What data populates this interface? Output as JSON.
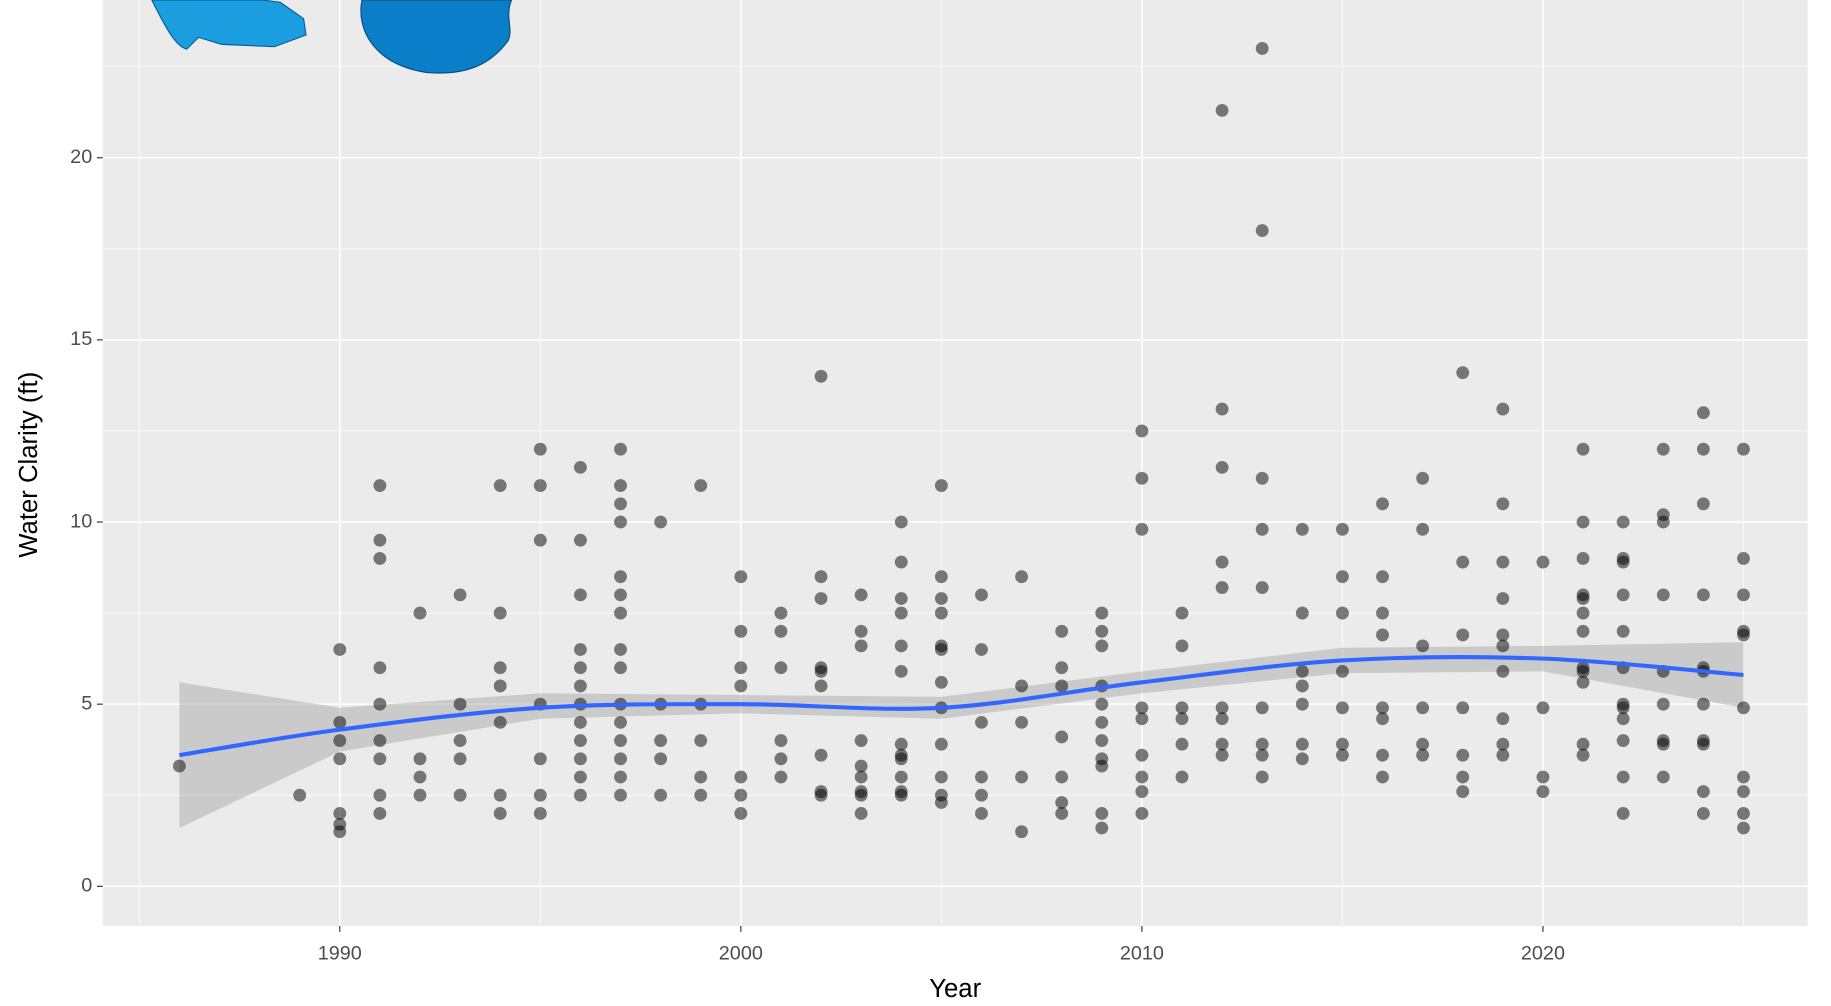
{
  "chart_data": {
    "type": "scatter",
    "x_label": "Year",
    "y_label": "Water Clarity (ft)",
    "xlim": [
      1984.09,
      2026.6
    ],
    "ylim": [
      -1.09,
      24.33
    ],
    "xticks": [
      1990,
      2000,
      2010,
      2020
    ],
    "yticks": [
      0,
      5,
      10,
      15,
      20
    ],
    "x_minor_breaks": [
      1985,
      1995,
      2005,
      2015,
      2025
    ],
    "y_minor_breaks": [
      2.5,
      7.5,
      12.5,
      17.5,
      22.5
    ],
    "grid": true,
    "point_color": "rgba(0,0,0,0.5)",
    "smooth_color": "#3366FF",
    "band_color": "rgba(153,153,153,0.4)",
    "points": [
      {
        "x": 1986,
        "y": [
          3.3
        ]
      },
      {
        "x": 1989,
        "y": [
          2.5
        ]
      },
      {
        "x": 1990,
        "y": [
          6.5,
          4.5,
          4,
          3.5,
          2,
          1.7,
          1.5
        ]
      },
      {
        "x": 1991,
        "y": [
          11,
          9.5,
          9,
          6,
          5,
          4,
          3.5,
          2.5,
          2
        ]
      },
      {
        "x": 1992,
        "y": [
          7.5,
          3.5,
          3,
          2.5
        ]
      },
      {
        "x": 1993,
        "y": [
          8,
          5,
          4,
          3.5,
          2.5
        ]
      },
      {
        "x": 1994,
        "y": [
          11,
          7.5,
          6,
          5.5,
          4.5,
          2.5,
          2
        ]
      },
      {
        "x": 1995,
        "y": [
          12,
          11,
          9.5,
          5,
          3.5,
          2.5,
          2
        ]
      },
      {
        "x": 1996,
        "y": [
          11.5,
          9.5,
          8,
          6.5,
          6,
          5.5,
          5,
          4.5,
          4,
          3.5,
          3,
          2.5
        ]
      },
      {
        "x": 1997,
        "y": [
          12,
          11,
          10.5,
          10,
          8.5,
          8,
          7.5,
          6.5,
          6,
          5,
          4.5,
          4,
          3.5,
          3,
          2.5
        ]
      },
      {
        "x": 1998,
        "y": [
          10,
          5,
          4,
          3.5,
          2.5
        ]
      },
      {
        "x": 1999,
        "y": [
          11,
          5,
          4,
          3,
          2.5
        ]
      },
      {
        "x": 2000,
        "y": [
          8.5,
          7,
          6,
          5.5,
          3,
          2.5,
          2
        ]
      },
      {
        "x": 2001,
        "y": [
          7.5,
          7,
          6,
          4,
          3.5,
          3
        ]
      },
      {
        "x": 2002,
        "y": [
          14,
          8.5,
          7.9,
          6,
          5.9,
          5.5,
          3.6,
          2.6,
          2.5
        ]
      },
      {
        "x": 2003,
        "y": [
          8,
          7,
          6.6,
          4,
          3.3,
          3,
          2.6,
          2.5,
          2
        ]
      },
      {
        "x": 2004,
        "y": [
          10,
          8.9,
          7.9,
          7.5,
          6.6,
          5.9,
          3.9,
          3.6,
          3.5,
          3,
          2.6,
          2.5
        ]
      },
      {
        "x": 2005,
        "y": [
          11,
          8.5,
          7.9,
          7.5,
          6.6,
          6.5,
          5.6,
          4.9,
          3.9,
          3,
          2.5,
          2.3
        ]
      },
      {
        "x": 2006,
        "y": [
          8,
          6.5,
          4.5,
          3,
          2.5,
          2
        ]
      },
      {
        "x": 2007,
        "y": [
          8.5,
          5.5,
          4.5,
          3,
          1.5
        ]
      },
      {
        "x": 2008,
        "y": [
          7,
          6,
          5.5,
          4.1,
          3,
          2.3,
          2
        ]
      },
      {
        "x": 2009,
        "y": [
          7.5,
          7,
          6.6,
          5.5,
          5,
          4.5,
          4,
          3.5,
          3.3,
          2,
          1.6
        ]
      },
      {
        "x": 2010,
        "y": [
          12.5,
          11.2,
          9.8,
          4.9,
          4.6,
          3.6,
          3,
          2.6,
          2
        ]
      },
      {
        "x": 2011,
        "y": [
          7.5,
          6.6,
          4.9,
          4.6,
          3.9,
          3
        ]
      },
      {
        "x": 2012,
        "y": [
          21.3,
          13.1,
          11.5,
          8.9,
          8.2,
          4.9,
          4.6,
          3.9,
          3.6
        ]
      },
      {
        "x": 2013,
        "y": [
          23,
          18,
          11.2,
          9.8,
          8.2,
          4.9,
          3.9,
          3.6,
          3
        ]
      },
      {
        "x": 2014,
        "y": [
          9.8,
          7.5,
          5.9,
          5.5,
          5,
          3.9,
          3.5
        ]
      },
      {
        "x": 2015,
        "y": [
          9.8,
          8.5,
          7.5,
          5.9,
          4.9,
          3.9,
          3.6
        ]
      },
      {
        "x": 2016,
        "y": [
          10.5,
          8.5,
          7.5,
          6.9,
          4.9,
          4.6,
          3.6,
          3
        ]
      },
      {
        "x": 2017,
        "y": [
          11.2,
          9.8,
          6.6,
          4.9,
          3.9,
          3.6
        ]
      },
      {
        "x": 2018,
        "y": [
          14.1,
          8.9,
          6.9,
          4.9,
          3.6,
          3,
          2.6
        ]
      },
      {
        "x": 2019,
        "y": [
          13.1,
          10.5,
          8.9,
          7.9,
          6.9,
          6.6,
          5.9,
          4.6,
          3.9,
          3.6
        ]
      },
      {
        "x": 2020,
        "y": [
          8.9,
          4.9,
          3,
          2.6
        ]
      },
      {
        "x": 2021,
        "y": [
          12,
          10,
          9,
          8,
          7.9,
          7.5,
          7,
          6,
          5.9,
          5.6,
          3.9,
          3.6
        ]
      },
      {
        "x": 2022,
        "y": [
          10,
          9,
          8.9,
          8,
          7,
          6,
          5,
          4.9,
          4.6,
          4,
          3,
          2
        ]
      },
      {
        "x": 2023,
        "y": [
          12,
          10.2,
          10,
          8,
          5.9,
          5,
          4,
          3.9,
          3
        ]
      },
      {
        "x": 2024,
        "y": [
          13,
          12,
          10.5,
          8,
          6,
          5.9,
          5,
          4,
          3.9,
          2.6,
          2
        ]
      },
      {
        "x": 2025,
        "y": [
          12,
          9,
          8,
          7,
          6.9,
          4.9,
          3,
          2.6,
          2,
          1.6
        ]
      }
    ],
    "smooth": {
      "x": [
        1986,
        1990,
        1995,
        2000,
        2005,
        2010,
        2015,
        2020,
        2025
      ],
      "values": [
        3.6,
        4.3,
        4.9,
        5.0,
        4.9,
        5.6,
        6.2,
        6.25,
        5.8
      ],
      "lower": [
        1.6,
        3.7,
        4.6,
        4.75,
        4.6,
        5.3,
        5.85,
        5.9,
        4.9
      ],
      "upper": [
        5.6,
        4.9,
        5.3,
        5.25,
        5.2,
        5.9,
        6.55,
        6.6,
        6.7
      ]
    }
  }
}
